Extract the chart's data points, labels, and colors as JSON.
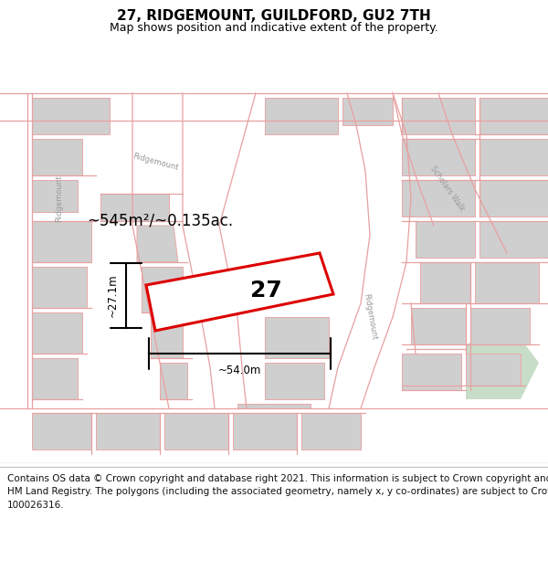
{
  "title": "27, RIDGEMOUNT, GUILDFORD, GU2 7TH",
  "subtitle": "Map shows position and indicative extent of the property.",
  "footer_lines": [
    "Contains OS data © Crown copyright and database right 2021. This information is subject to Crown copyright and database rights 2023 and is reproduced with the permission of",
    "HM Land Registry. The polygons (including the associated geometry, namely x, y co-ordinates) are subject to Crown copyright and database rights 2023 Ordnance Survey",
    "100026316."
  ],
  "map_bg": "#eeecec",
  "road_color": "#ffffff",
  "building_color": "#d0cfcf",
  "building_edge": "#e8a8a8",
  "pink": "#e8a0a0",
  "red": "#dd0000",
  "green_area": "#c8ddc8",
  "label_area": "~545m²/~0.135ac.",
  "label_width": "~54.0m",
  "label_height": "~27.1m",
  "label_number": "27",
  "title_fontsize": 11,
  "subtitle_fontsize": 9,
  "footer_fontsize": 7.5
}
